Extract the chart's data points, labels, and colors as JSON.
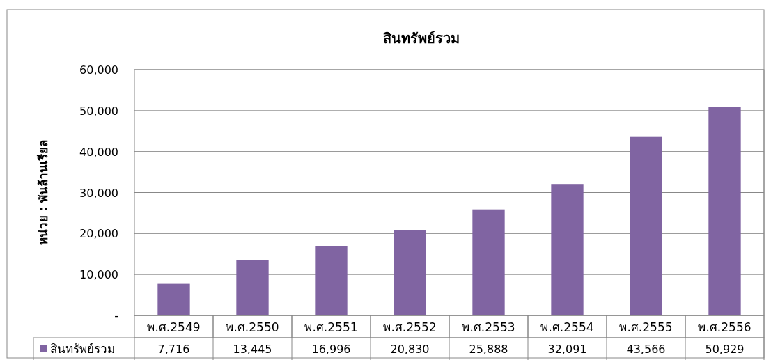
{
  "chart_data": {
    "type": "bar",
    "title": "สินทรัพย์รวม",
    "ylabel": "หน่วย : พันล้านเรียล",
    "categories": [
      "พ.ศ.2549",
      "พ.ศ.2550",
      "พ.ศ.2551",
      "พ.ศ.2552",
      "พ.ศ.2553",
      "พ.ศ.2554",
      "พ.ศ.2555",
      "พ.ศ.2556"
    ],
    "series": [
      {
        "name": "สินทรัพย์รวม",
        "color": "#8064a2",
        "values": [
          7716,
          13445,
          16996,
          20830,
          25888,
          32091,
          43566,
          50929
        ],
        "value_labels": [
          "7,716",
          "13,445",
          "16,996",
          "20,830",
          "25,888",
          "32,091",
          "43,566",
          "50,929"
        ]
      }
    ],
    "ylim": [
      0,
      60000
    ],
    "yticks": [
      {
        "value": 0,
        "label": "-"
      },
      {
        "value": 10000,
        "label": "10,000"
      },
      {
        "value": 20000,
        "label": "20,000"
      },
      {
        "value": 30000,
        "label": "30,000"
      },
      {
        "value": 40000,
        "label": "40,000"
      },
      {
        "value": 50000,
        "label": "50,000"
      },
      {
        "value": 60000,
        "label": "60,000"
      }
    ],
    "grid": "y",
    "legend": "bottom"
  }
}
